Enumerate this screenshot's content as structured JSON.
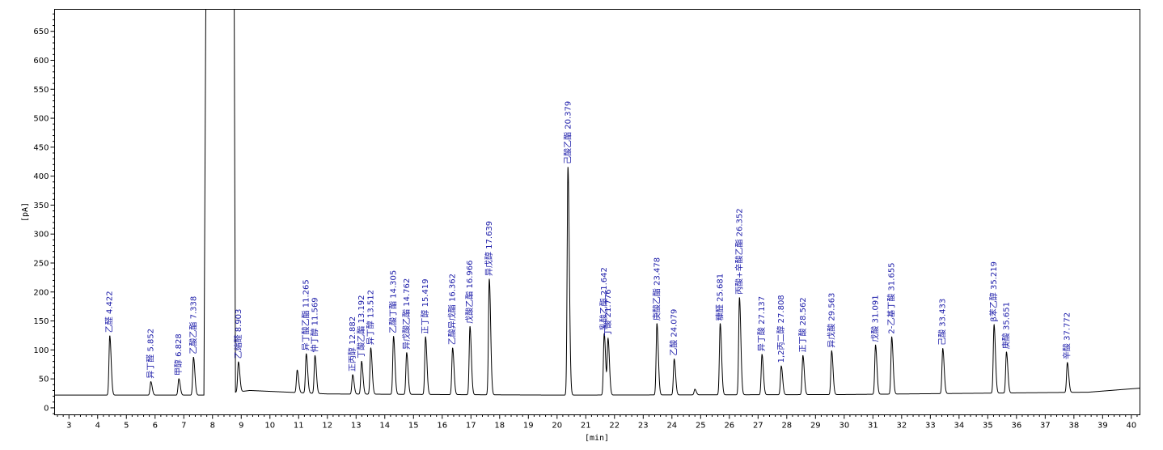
{
  "chart_data": {
    "type": "line",
    "title": "",
    "xlabel": "[min]",
    "ylabel": "[pA]",
    "xlim": [
      2.5,
      40.3
    ],
    "ylim": [
      -12,
      688
    ],
    "x_ticks": [
      3,
      4,
      5,
      6,
      7,
      8,
      9,
      10,
      11,
      12,
      13,
      14,
      15,
      16,
      17,
      18,
      19,
      20,
      21,
      22,
      23,
      24,
      25,
      26,
      27,
      28,
      29,
      30,
      31,
      32,
      33,
      34,
      35,
      36,
      37,
      38,
      39,
      40
    ],
    "y_ticks": [
      0,
      50,
      100,
      150,
      200,
      250,
      300,
      350,
      400,
      450,
      500,
      550,
      600,
      650
    ],
    "grid": false,
    "baseline": [
      {
        "x": 2.5,
        "y": 22
      },
      {
        "x": 8.0,
        "y": 22
      },
      {
        "x": 9.3,
        "y": 30
      },
      {
        "x": 12.0,
        "y": 24
      },
      {
        "x": 20.0,
        "y": 22
      },
      {
        "x": 30.0,
        "y": 23
      },
      {
        "x": 38.5,
        "y": 27
      },
      {
        "x": 40.3,
        "y": 34
      }
    ],
    "solvent_peak": {
      "start": 7.7,
      "end": 8.8,
      "top": 688
    },
    "peaks": [
      {
        "rt": 4.422,
        "height": 124,
        "label": "乙醛 4.422"
      },
      {
        "rt": 5.852,
        "height": 45,
        "label": "异丁醛 5.852"
      },
      {
        "rt": 6.828,
        "height": 50,
        "label": "甲醇 6.828"
      },
      {
        "rt": 7.338,
        "height": 87,
        "label": "乙酸乙酯 7.338"
      },
      {
        "rt": 8.903,
        "height": 79,
        "label": "乙缩醛 8.903"
      },
      {
        "rt": 10.95,
        "height": 65,
        "label": ""
      },
      {
        "rt": 11.265,
        "height": 93,
        "label": "异丁酸乙酯 11.265"
      },
      {
        "rt": 11.569,
        "height": 90,
        "label": "仲丁醇 11.569"
      },
      {
        "rt": 12.882,
        "height": 57,
        "label": "正丙醇 12.882"
      },
      {
        "rt": 13.192,
        "height": 80,
        "label": "丁酸乙酯 13.192"
      },
      {
        "rt": 13.512,
        "height": 103,
        "label": "异丁醇 13.512"
      },
      {
        "rt": 14.305,
        "height": 123,
        "label": "乙酸丁酯 14.305"
      },
      {
        "rt": 14.762,
        "height": 95,
        "label": "异戊酸乙酯 14.762"
      },
      {
        "rt": 15.419,
        "height": 122,
        "label": "正丁醇 15.419"
      },
      {
        "rt": 16.362,
        "height": 103,
        "label": "乙酸异戊酯 16.362"
      },
      {
        "rt": 16.966,
        "height": 140,
        "label": "戊酸乙酯 16.966"
      },
      {
        "rt": 17.639,
        "height": 222,
        "label": "异戊醇 17.639"
      },
      {
        "rt": 20.379,
        "height": 415,
        "label": "己酸乙酯 20.379"
      },
      {
        "rt": 21.642,
        "height": 128,
        "label": "乳酸乙酯 21.642"
      },
      {
        "rt": 21.776,
        "height": 118,
        "label": "丁酸 21.776"
      },
      {
        "rt": 23.478,
        "height": 145,
        "label": "庚酸乙酯 23.478"
      },
      {
        "rt": 24.079,
        "height": 84,
        "label": "乙酸 24.079"
      },
      {
        "rt": 24.8,
        "height": 32,
        "label": ""
      },
      {
        "rt": 25.681,
        "height": 145,
        "label": "糠醛 25.681"
      },
      {
        "rt": 26.352,
        "height": 190,
        "label": "丙酸+辛酸乙酯 26.352"
      },
      {
        "rt": 27.137,
        "height": 92,
        "label": "异丁酸 27.137"
      },
      {
        "rt": 27.808,
        "height": 72,
        "label": "1,2丙二醇 27.808"
      },
      {
        "rt": 28.562,
        "height": 90,
        "label": "正丁酸 28.562"
      },
      {
        "rt": 29.563,
        "height": 98,
        "label": "异戊酸 29.563"
      },
      {
        "rt": 31.091,
        "height": 108,
        "label": "戊酸 31.091"
      },
      {
        "rt": 31.655,
        "height": 122,
        "label": "2-乙基丁酸 31.655"
      },
      {
        "rt": 33.433,
        "height": 102,
        "label": "己酸 33.433"
      },
      {
        "rt": 35.219,
        "height": 143,
        "label": "β苯乙醇 35.219"
      },
      {
        "rt": 35.651,
        "height": 96,
        "label": "庚酸 35.651"
      },
      {
        "rt": 37.772,
        "height": 78,
        "label": "辛酸 37.772"
      }
    ],
    "colors": {
      "trace": "#000000",
      "labels": "#1a1aa8",
      "axis": "#000000"
    }
  }
}
